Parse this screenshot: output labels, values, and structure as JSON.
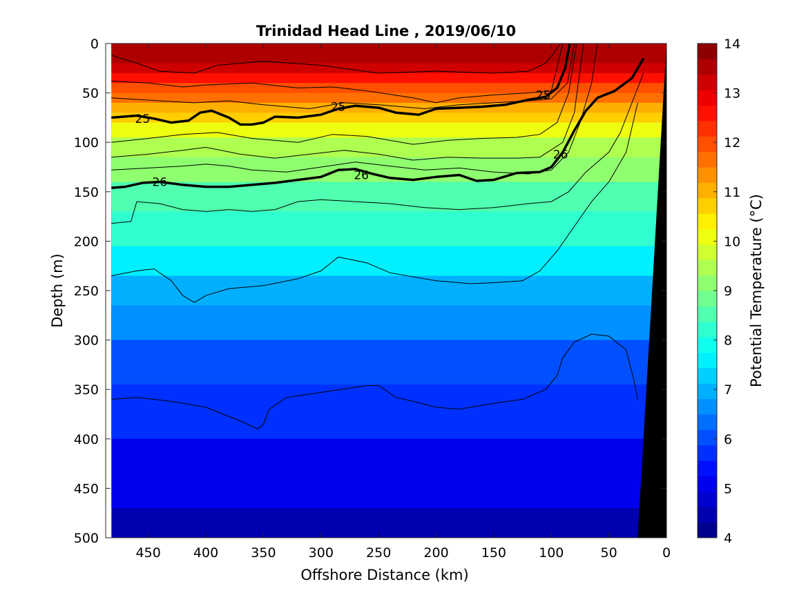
{
  "chart_data": {
    "type": "contourf",
    "title": "Trinidad Head Line , 2019/06/10",
    "xlabel": "Offshore Distance (km)",
    "ylabel": "Depth (m)",
    "xlim": [
      487,
      0
    ],
    "ylim": [
      0,
      500
    ],
    "x_reversed": true,
    "y_reversed": true,
    "x_ticks": [
      450,
      400,
      350,
      300,
      250,
      200,
      150,
      100,
      50,
      0
    ],
    "y_ticks": [
      0,
      50,
      100,
      150,
      200,
      250,
      300,
      350,
      400,
      450,
      500
    ],
    "colorbar": {
      "label": "Potential Temperature (°C)",
      "ticks": [
        4,
        5,
        6,
        7,
        8,
        9,
        10,
        11,
        12,
        13,
        14
      ],
      "levels": [
        4,
        4.5,
        5,
        5.5,
        6,
        6.5,
        7,
        7.5,
        8,
        8.5,
        9,
        9.5,
        10,
        10.5,
        11,
        11.5,
        12,
        12.5,
        13,
        13.5,
        14
      ],
      "colors": [
        "#00008f",
        "#0000af",
        "#0000cf",
        "#0000ef",
        "#0010ff",
        "#0030ff",
        "#0050ff",
        "#0070ff",
        "#0090ff",
        "#00b0ff",
        "#00d0ff",
        "#00f0ff",
        "#10ffef",
        "#30ffcf",
        "#50ffaf",
        "#70ff8f",
        "#8fff70",
        "#afff50",
        "#cfff30",
        "#efff10",
        "#ffef00",
        "#ffcf00",
        "#ffaf00",
        "#ff9000",
        "#ff7000",
        "#ff5000",
        "#ff3000",
        "#ff1000",
        "#ef0000",
        "#cf0000",
        "#af0000",
        "#8f0000"
      ]
    },
    "data_extent_x": [
      482,
      0
    ],
    "seafloor": {
      "x_km": [
        25,
        0,
        0,
        25
      ],
      "depth_m": [
        500,
        0,
        0,
        500
      ],
      "color": "#000000"
    },
    "isotherm_mean_depth_m": [
      {
        "temp": 13.5,
        "depth": 20
      },
      {
        "temp": 13,
        "depth": 30
      },
      {
        "temp": 12.5,
        "depth": 40
      },
      {
        "temp": 12,
        "depth": 50
      },
      {
        "temp": 11.5,
        "depth": 60
      },
      {
        "temp": 11,
        "depth": 70
      },
      {
        "temp": 10.5,
        "depth": 80
      },
      {
        "temp": 10,
        "depth": 95
      },
      {
        "temp": 9.5,
        "depth": 115
      },
      {
        "temp": 9,
        "depth": 140
      },
      {
        "temp": 8.5,
        "depth": 170
      },
      {
        "temp": 8,
        "depth": 205
      },
      {
        "temp": 7.5,
        "depth": 235
      },
      {
        "temp": 7,
        "depth": 265
      },
      {
        "temp": 6.5,
        "depth": 300
      },
      {
        "temp": 6,
        "depth": 345
      },
      {
        "temp": 5.5,
        "depth": 400
      },
      {
        "temp": 5,
        "depth": 470
      }
    ],
    "density_contours": [
      {
        "label": "25",
        "bold": true,
        "x_km": [
          482,
          460,
          445,
          430,
          415,
          405,
          395,
          380,
          370,
          360,
          350,
          340,
          320,
          300,
          285,
          270,
          250,
          235,
          215,
          200,
          180,
          160,
          140,
          120,
          105,
          95,
          88,
          84
        ],
        "depth_m": [
          75,
          73,
          76,
          80,
          78,
          70,
          68,
          75,
          82,
          82,
          80,
          74,
          75,
          72,
          66,
          63,
          65,
          70,
          72,
          66,
          65,
          64,
          62,
          57,
          54,
          45,
          25,
          0
        ],
        "label_positions": [
          {
            "x": 455,
            "depth": 76
          },
          {
            "x": 285,
            "depth": 64
          },
          {
            "x": 107,
            "depth": 52
          }
        ]
      },
      {
        "label": "26",
        "bold": true,
        "x_km": [
          482,
          470,
          455,
          440,
          420,
          400,
          380,
          360,
          340,
          320,
          300,
          285,
          270,
          255,
          240,
          220,
          200,
          180,
          165,
          150,
          130,
          110,
          100,
          90,
          80,
          70,
          60,
          45,
          30,
          20
        ],
        "depth_m": [
          146,
          145,
          141,
          140,
          143,
          145,
          145,
          143,
          141,
          138,
          135,
          128,
          127,
          132,
          136,
          138,
          135,
          133,
          139,
          138,
          131,
          130,
          125,
          110,
          88,
          68,
          55,
          48,
          35,
          15
        ],
        "label_positions": [
          {
            "x": 440,
            "depth": 140
          },
          {
            "x": 265,
            "depth": 133
          },
          {
            "x": 92,
            "depth": 112
          }
        ]
      }
    ],
    "thin_contours": [
      {
        "x_km": [
          482,
          460,
          440,
          410,
          390,
          350,
          300,
          250,
          200,
          150,
          120,
          105,
          98,
          92
        ],
        "depth_m": [
          12,
          20,
          28,
          30,
          22,
          18,
          22,
          30,
          28,
          30,
          28,
          20,
          10,
          0
        ]
      },
      {
        "x_km": [
          482,
          450,
          420,
          400,
          360,
          320,
          290,
          260,
          220,
          200,
          180,
          150,
          120,
          100,
          90
        ],
        "depth_m": [
          38,
          40,
          44,
          42,
          40,
          45,
          44,
          48,
          55,
          60,
          55,
          52,
          50,
          48,
          0
        ]
      },
      {
        "x_km": [
          482,
          440,
          410,
          380,
          350,
          310,
          280,
          250,
          210,
          180,
          150,
          120,
          100,
          86,
          80
        ],
        "depth_m": [
          55,
          58,
          60,
          58,
          62,
          66,
          60,
          62,
          66,
          62,
          60,
          58,
          56,
          40,
          0
        ]
      },
      {
        "x_km": [
          482,
          450,
          420,
          390,
          360,
          320,
          290,
          260,
          220,
          190,
          160,
          130,
          110,
          95,
          85,
          78
        ],
        "depth_m": [
          100,
          96,
          92,
          90,
          96,
          100,
          92,
          94,
          102,
          98,
          96,
          95,
          92,
          80,
          50,
          0
        ]
      },
      {
        "x_km": [
          482,
          450,
          420,
          400,
          370,
          340,
          310,
          280,
          250,
          220,
          190,
          160,
          130,
          110,
          90,
          80,
          72
        ],
        "depth_m": [
          115,
          112,
          108,
          105,
          112,
          116,
          112,
          108,
          112,
          118,
          115,
          116,
          116,
          115,
          100,
          70,
          0
        ]
      },
      {
        "x_km": [
          482,
          450,
          420,
          400,
          380,
          360,
          330,
          300,
          270,
          240,
          210,
          180,
          150,
          120,
          100,
          85,
          75,
          65,
          60
        ],
        "depth_m": [
          128,
          126,
          124,
          122,
          124,
          128,
          130,
          125,
          120,
          124,
          128,
          126,
          130,
          132,
          128,
          110,
          80,
          40,
          0
        ]
      },
      {
        "x_km": [
          482,
          465,
          460,
          440,
          420,
          400,
          380,
          360,
          340,
          320,
          300,
          270,
          240,
          210,
          180,
          150,
          120,
          100,
          85,
          70,
          50,
          40,
          30,
          20
        ],
        "depth_m": [
          182,
          180,
          160,
          162,
          168,
          170,
          168,
          170,
          168,
          160,
          158,
          160,
          162,
          166,
          168,
          166,
          162,
          160,
          150,
          130,
          110,
          90,
          60,
          30
        ]
      },
      {
        "x_km": [
          482,
          460,
          445,
          430,
          420,
          410,
          400,
          380,
          350,
          320,
          300,
          285,
          260,
          240,
          200,
          170,
          150,
          125,
          110,
          95,
          80,
          65,
          50,
          35,
          25
        ],
        "depth_m": [
          235,
          230,
          228,
          240,
          255,
          262,
          255,
          248,
          245,
          238,
          230,
          216,
          222,
          232,
          240,
          243,
          242,
          240,
          230,
          210,
          185,
          160,
          140,
          110,
          60
        ]
      },
      {
        "x_km": [
          482,
          460,
          430,
          400,
          370,
          355,
          350,
          345,
          330,
          300,
          260,
          250,
          235,
          220,
          200,
          180,
          150,
          125,
          105,
          95,
          90,
          80,
          65,
          50,
          35,
          28,
          25
        ],
        "depth_m": [
          360,
          358,
          362,
          368,
          382,
          390,
          385,
          370,
          358,
          353,
          346,
          346,
          358,
          362,
          368,
          370,
          364,
          360,
          350,
          336,
          318,
          302,
          294,
          296,
          310,
          342,
          360
        ]
      }
    ]
  }
}
